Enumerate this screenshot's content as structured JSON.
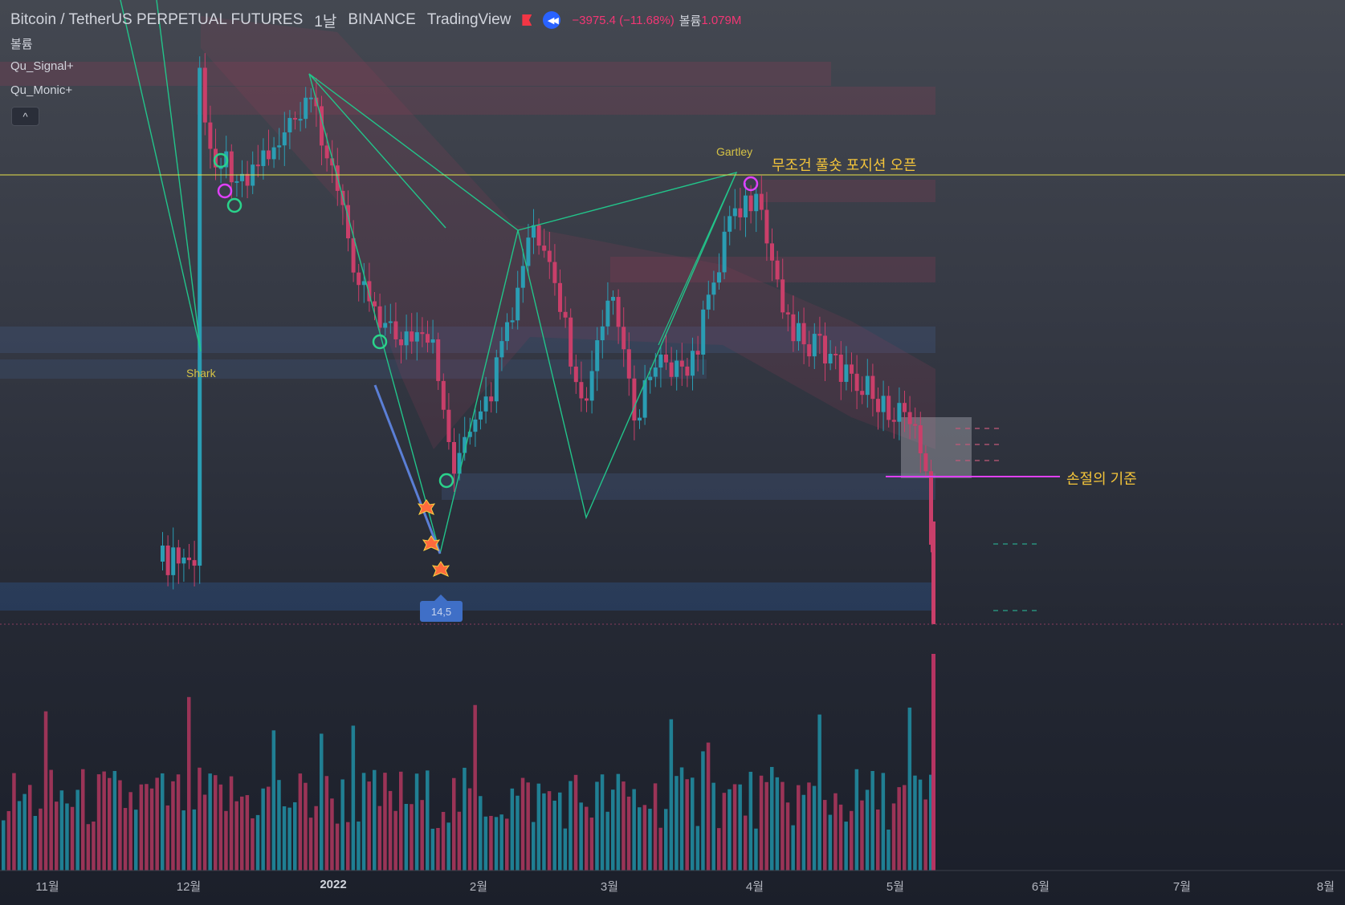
{
  "header": {
    "symbol": "Bitcoin / TetherUS PERPETUAL FUTURES",
    "interval": "1날",
    "exchange": "BINANCE",
    "source": "TradingView",
    "change": "−3975.4 (−11.68%)",
    "volume_label": "볼륨",
    "volume_value": "1.079M"
  },
  "legend": {
    "volume": "볼륨",
    "ind1": "Qu_Signal+",
    "ind2": "Qu_Monic+",
    "collapse": "^"
  },
  "annotations": {
    "entry": "무조건 풀숏 포지션 오픈",
    "stoploss": "손절의 기준",
    "pattern_gartley": "Gartley",
    "pattern_shark": "Shark",
    "price_tag": "14,5"
  },
  "colors": {
    "up": "#26a69a",
    "down": "#ef5350",
    "candle_up": "#2a9db3",
    "candle_down": "#c93f6a",
    "pattern": "#22c48a",
    "entry_line": "#e8e24a",
    "stop_line": "#e040fb"
  },
  "chart_data": {
    "type": "candlestick",
    "x_ticks": [
      "11월",
      "12월",
      "2022",
      "2월",
      "3월",
      "4월",
      "5월",
      "6월",
      "7월",
      "8월"
    ],
    "series": [],
    "notes": [
      "Gartley",
      "Shark",
      "무조건 풀숏 포지션 오픈",
      "손절의 기준"
    ]
  }
}
